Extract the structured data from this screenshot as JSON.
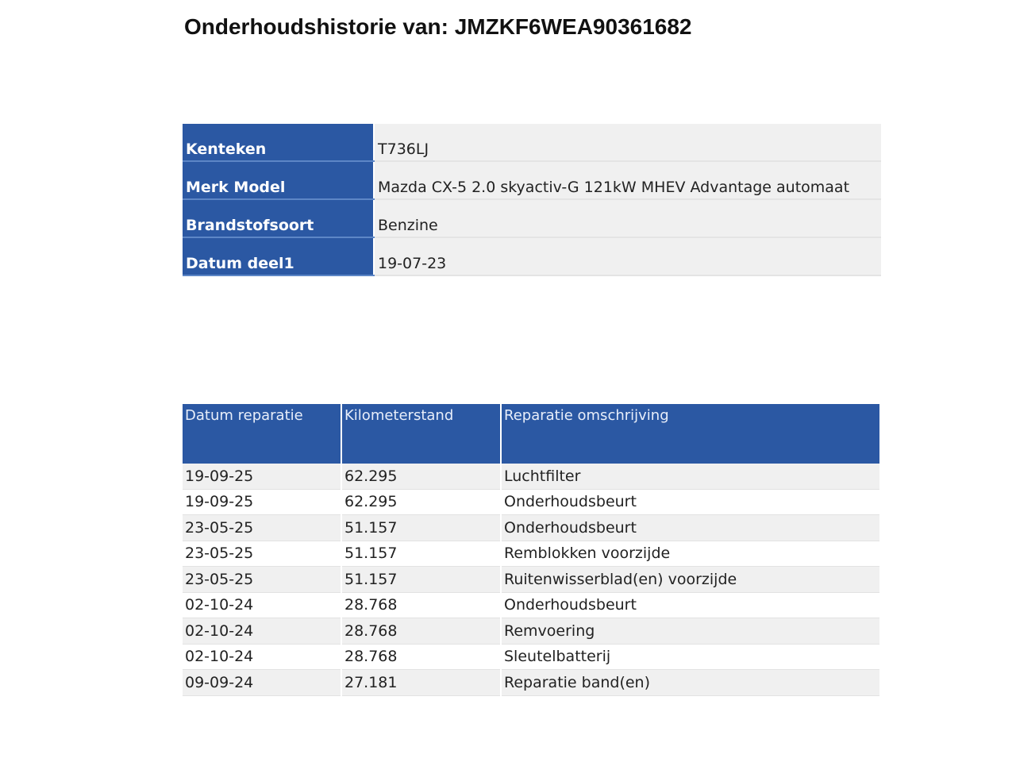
{
  "title": "Onderhoudshistorie van: JMZKF6WEA90361682",
  "vehicle": [
    {
      "label": "Kenteken",
      "value": "T736LJ"
    },
    {
      "label": "Merk Model",
      "value": "Mazda CX-5 2.0 skyactiv-G 121kW MHEV Advantage automaat"
    },
    {
      "label": "Brandstofsoort",
      "value": "Benzine"
    },
    {
      "label": "Datum deel1",
      "value": "19-07-23"
    }
  ],
  "history": {
    "columns": [
      "Datum reparatie",
      "Kilometerstand",
      "Reparatie omschrijving"
    ],
    "rows": [
      [
        "19-09-25",
        "62.295",
        "Luchtfilter"
      ],
      [
        "19-09-25",
        "62.295",
        "Onderhoudsbeurt"
      ],
      [
        "23-05-25",
        "51.157",
        "Onderhoudsbeurt"
      ],
      [
        "23-05-25",
        "51.157",
        "Remblokken voorzijde"
      ],
      [
        "23-05-25",
        "51.157",
        "Ruitenwisserblad(en) voorzijde"
      ],
      [
        "02-10-24",
        "28.768",
        "Onderhoudsbeurt"
      ],
      [
        "02-10-24",
        "28.768",
        "Remvoering"
      ],
      [
        "02-10-24",
        "28.768",
        "Sleutelbatterij"
      ],
      [
        "09-09-24",
        "27.181",
        "Reparatie band(en)"
      ]
    ]
  },
  "colors": {
    "header_blue": "#2b58a3",
    "row_gray": "#f0f0f0"
  }
}
